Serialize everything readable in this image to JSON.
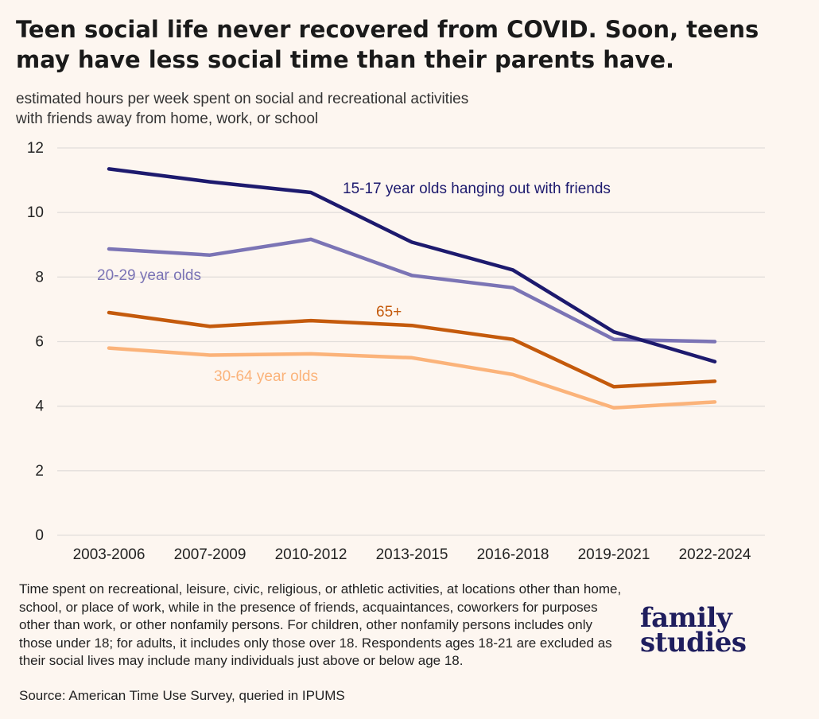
{
  "title": "Teen social life never recovered from COVID. Soon, teens may have less social time than their parents have.",
  "subtitle_line1": "estimated hours per week spent on social and recreational activities",
  "subtitle_line2": "with friends away from home, work, or school",
  "notes": "Time spent on recreational, leisure, civic, religious, or athletic activities, at locations other than home, school, or place of work, while in the presence of friends, acquaintances, coworkers for purposes other than work, or other nonfamily persons. For children, other nonfamily persons includes only those under 18; for adults, it includes only those over 18. Respondents ages 18-21 are excluded as their social lives may include many individuals just above or below age 18.",
  "source": "Source: American Time Use Survey, queried in IPUMS",
  "logo": {
    "line1": "family",
    "line2": "studies"
  },
  "chart_data": {
    "type": "line",
    "title": "Teen social life never recovered from COVID. Soon, teens may have less social time than their parents have.",
    "ylabel": "estimated hours per week spent on social and recreational activities with friends away from home, work, or school",
    "xlabel": "",
    "categories": [
      "2003-2006",
      "2007-2009",
      "2010-2012",
      "2013-2015",
      "2016-2018",
      "2019-2021",
      "2022-2024"
    ],
    "ylim": [
      0,
      12
    ],
    "yticks": [
      0,
      2,
      4,
      6,
      8,
      10,
      12
    ],
    "grid": true,
    "legend": "direct labels",
    "series": [
      {
        "name": "15-17 year olds hanging out with friends",
        "color": "#1d1a6e",
        "values": [
          11.35,
          10.95,
          10.62,
          9.08,
          8.22,
          6.3,
          5.38
        ],
        "label_anchor": 2
      },
      {
        "name": "20-29 year olds",
        "color": "#7b74b5",
        "values": [
          8.87,
          8.68,
          9.17,
          8.05,
          7.67,
          6.07,
          6.0
        ],
        "label_anchor": 0
      },
      {
        "name": "65+",
        "color": "#c45a0c",
        "values": [
          6.9,
          6.47,
          6.65,
          6.5,
          6.07,
          4.6,
          4.77
        ],
        "label_anchor": 3
      },
      {
        "name": "30-64 year olds",
        "color": "#fbb37a",
        "values": [
          5.8,
          5.58,
          5.62,
          5.5,
          4.98,
          3.95,
          4.13
        ],
        "label_anchor": 2
      }
    ]
  }
}
